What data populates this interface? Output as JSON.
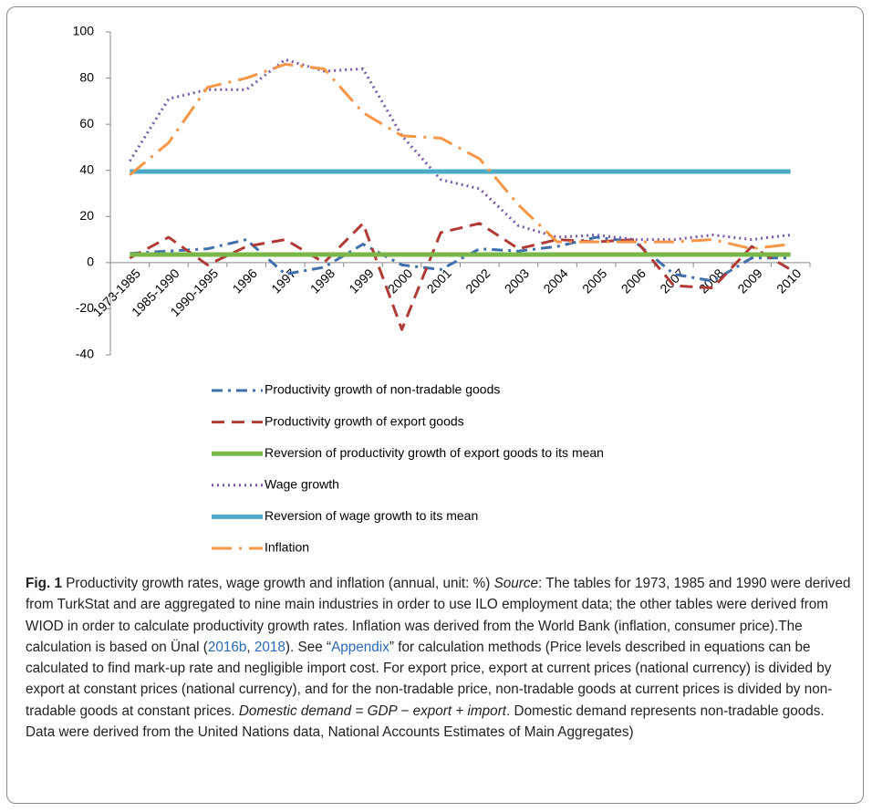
{
  "chart_data": {
    "type": "line",
    "categories": [
      "1973-1985",
      "1985-1990",
      "1990-1995",
      "1996",
      "1997",
      "1998",
      "1999",
      "2000",
      "2001",
      "2002",
      "2003",
      "2004",
      "2005",
      "2006",
      "2007",
      "2008",
      "2009",
      "2010"
    ],
    "ylim": [
      -40,
      100
    ],
    "yticks": [
      100,
      80,
      60,
      40,
      20,
      0,
      -20,
      -40
    ],
    "grid": false,
    "series": [
      {
        "name": "Productivity growth of non-tradable goods",
        "color": "#3f6fad",
        "style": "dash-dot",
        "values": [
          4,
          5,
          6,
          10,
          -5,
          -2,
          8,
          -1,
          -3,
          6,
          5,
          7,
          11,
          9,
          -5,
          -8,
          2,
          2
        ]
      },
      {
        "name": "Productivity growth of export goods",
        "color": "#b03a35",
        "style": "dash",
        "values": [
          2,
          11,
          -1,
          7,
          10,
          0,
          17,
          -29,
          13,
          17,
          6,
          10,
          9,
          10,
          -10,
          -11,
          7,
          -3
        ]
      },
      {
        "name": "Reversion of productivity growth of export goods to its mean",
        "color": "#7ab648",
        "style": "thick",
        "values": [
          3.5,
          3.5,
          3.5,
          3.5,
          3.5,
          3.5,
          3.5,
          3.5,
          3.5,
          3.5,
          3.5,
          3.5,
          3.5,
          3.5,
          3.5,
          3.5,
          3.5,
          3.5
        ]
      },
      {
        "name": "Wage growth",
        "color": "#7a5ba8",
        "style": "dot",
        "values": [
          44,
          71,
          75,
          75,
          88,
          83,
          84,
          55,
          36,
          32,
          16,
          11,
          12,
          10,
          10,
          12,
          10,
          12
        ]
      },
      {
        "name": "Reversion of wage growth to its mean",
        "color": "#4babc6",
        "style": "thick",
        "values": [
          39.5,
          39.5,
          39.5,
          39.5,
          39.5,
          39.5,
          39.5,
          39.5,
          39.5,
          39.5,
          39.5,
          39.5,
          39.5,
          39.5,
          39.5,
          39.5,
          39.5,
          39.5
        ]
      },
      {
        "name": "Inflation",
        "color": "#f79646",
        "style": "long-dash-dot",
        "values": [
          38,
          52,
          76,
          80,
          86,
          84,
          65,
          55,
          54,
          45,
          25,
          9,
          9,
          9,
          9,
          10,
          6,
          8
        ]
      }
    ]
  },
  "caption": [
    "Fig. 1",
    "  Productivity growth rates, wage growth and inflation (annual, unit: %) ",
    "Source",
    ": The tables for 1973, 1985 and 1990 were derived from TurkStat and are aggregated to nine main industries in order to use ILO employment data; the other tables were derived from WIOD in order to calculate productivity growth rates. Inflation was derived from the World Bank (inflation, consumer price).The calculation is based on Ünal (",
    "2016b",
    ", ",
    "2018",
    "). See “",
    "Appendix",
    "” for calculation methods (Price levels described in equations can be calculated to find mark-up rate and negligible import cost. For export price, export at current prices (national currency) is divided by export at constant prices (national currency), and for the non-tradable price, non-tradable goods at current prices is divided by non-tradable goods at constant prices. ",
    "Domestic demand = GDP − export + import",
    ". Domestic demand represents non-tradable goods. Data were derived from the United Nations data, National Accounts Estimates of Main Aggregates)"
  ]
}
